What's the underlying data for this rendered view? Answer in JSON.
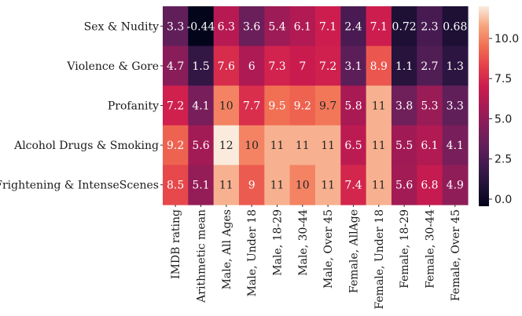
{
  "chart_data": {
    "type": "heatmap",
    "title": "",
    "xlabel": "",
    "ylabel": "",
    "rows": [
      "Sex & Nudity",
      "Violence & Gore",
      "Profanity",
      "Alcohol Drugs & Smoking",
      "Frightening & IntenseScenes"
    ],
    "columns": [
      "IMDB rating",
      "Arithmetic mean",
      "Male, All Ages",
      "Male, Under 18",
      "Male, 18-29",
      "Male, 30-44",
      "Male, Over 45",
      "Female, AllAge",
      "Female, Under 18",
      "Female, 18-29",
      "Female, 30-44",
      "Female, Over 45"
    ],
    "values": [
      [
        3.3,
        -0.44,
        6.3,
        3.6,
        5.4,
        6.1,
        7.1,
        2.4,
        7.1,
        0.72,
        2.3,
        0.68
      ],
      [
        4.7,
        1.5,
        7.6,
        6,
        7.3,
        7,
        7.2,
        3.1,
        8.9,
        1.1,
        2.7,
        1.3
      ],
      [
        7.2,
        4.1,
        10,
        7.7,
        9.5,
        9.2,
        9.7,
        5.8,
        11,
        3.8,
        5.3,
        3.3
      ],
      [
        9.2,
        5.6,
        12,
        10,
        11,
        11,
        11,
        6.5,
        11,
        5.5,
        6.1,
        4.1
      ],
      [
        8.5,
        5.1,
        11,
        9,
        11,
        10,
        11,
        7.4,
        11,
        5.6,
        6.8,
        4.9
      ]
    ],
    "colorbar": {
      "vmin": -0.44,
      "vmax": 12,
      "ticks": [
        0.0,
        2.5,
        5.0,
        7.5,
        10.0
      ],
      "tick_labels": [
        "0.0",
        "2.5",
        "5.0",
        "7.5",
        "10.0"
      ],
      "colormap": "rocket"
    }
  }
}
